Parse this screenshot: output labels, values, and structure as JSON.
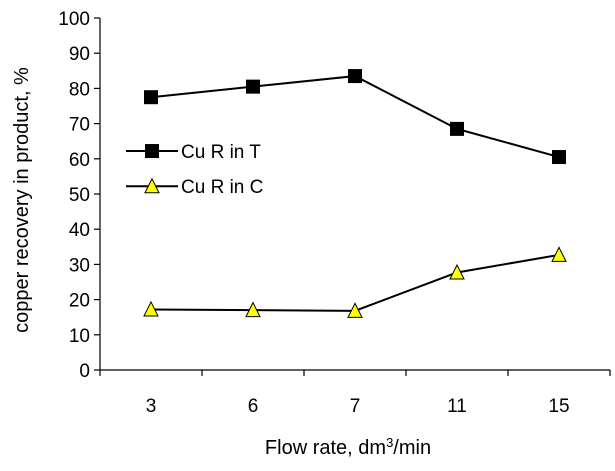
{
  "chart_data": {
    "type": "line",
    "categories": [
      "3",
      "6",
      "7",
      "11",
      "15"
    ],
    "yticks": [
      "0",
      "10",
      "20",
      "30",
      "40",
      "50",
      "60",
      "70",
      "80",
      "90",
      "100"
    ],
    "ylim": [
      0,
      100
    ],
    "ylabel": "copper recovery in product, %",
    "xlabel": {
      "base": "Flow rate, dm",
      "sup": "3",
      "tail": "/min"
    },
    "grid": false,
    "legend_position": "left",
    "series": [
      {
        "name": "Cu R in T",
        "values": [
          77.5,
          80.5,
          83.5,
          68.5,
          60.5
        ],
        "marker": "square",
        "marker_color": "#000000",
        "line_color": "#000000"
      },
      {
        "name": "Cu R in C",
        "values": [
          17.2,
          17.0,
          16.8,
          27.7,
          32.7
        ],
        "marker": "triangle",
        "marker_color": "#ffff00",
        "line_color": "#000000"
      }
    ]
  }
}
